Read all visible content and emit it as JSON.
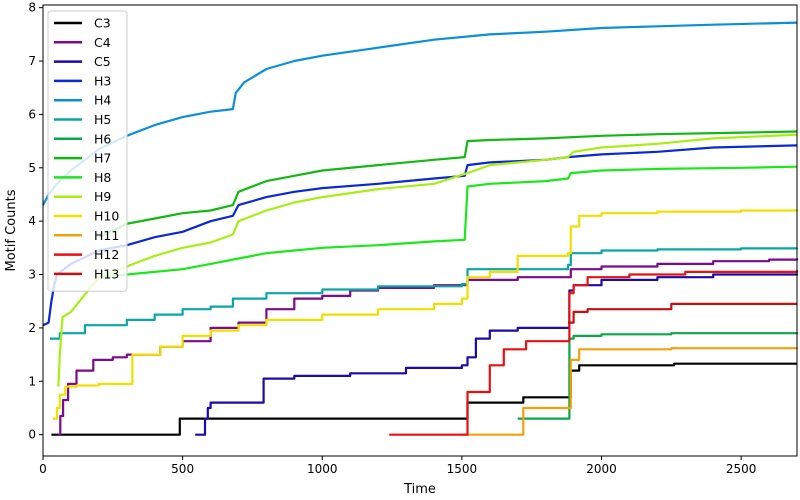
{
  "chart_data": {
    "type": "line",
    "xlabel": "Time",
    "ylabel": "Motif Counts",
    "xlim": [
      0,
      2700
    ],
    "ylim": [
      -0.4,
      8.05
    ],
    "xticks": [
      0,
      500,
      1000,
      1500,
      2000,
      2500
    ],
    "yticks": [
      0,
      1,
      2,
      3,
      4,
      5,
      6,
      7,
      8
    ],
    "grid": false,
    "legend_position": "top-left",
    "series": [
      {
        "name": "C3",
        "color": "#000000",
        "step": true,
        "points": [
          [
            30,
            0
          ],
          [
            490,
            0
          ],
          [
            490,
            0.3
          ],
          [
            1520,
            0.3
          ],
          [
            1520,
            0.6
          ],
          [
            1720,
            0.6
          ],
          [
            1720,
            0.7
          ],
          [
            1890,
            0.7
          ],
          [
            1890,
            1.2
          ],
          [
            1920,
            1.2
          ],
          [
            1920,
            1.3
          ],
          [
            2260,
            1.3
          ],
          [
            2260,
            1.33
          ],
          [
            2700,
            1.33
          ]
        ]
      },
      {
        "name": "C4",
        "color": "#7b0a8c",
        "step": true,
        "points": [
          [
            55,
            0
          ],
          [
            62,
            0.35
          ],
          [
            72,
            0.65
          ],
          [
            90,
            0.95
          ],
          [
            120,
            1.2
          ],
          [
            180,
            1.4
          ],
          [
            250,
            1.45
          ],
          [
            300,
            1.5
          ],
          [
            420,
            1.65
          ],
          [
            500,
            1.75
          ],
          [
            600,
            2.0
          ],
          [
            700,
            2.1
          ],
          [
            800,
            2.35
          ],
          [
            900,
            2.55
          ],
          [
            1000,
            2.6
          ],
          [
            1100,
            2.7
          ],
          [
            1200,
            2.75
          ],
          [
            1400,
            2.8
          ],
          [
            1520,
            2.9
          ],
          [
            1700,
            2.95
          ],
          [
            1890,
            3.1
          ],
          [
            2000,
            3.15
          ],
          [
            2200,
            3.2
          ],
          [
            2400,
            3.25
          ],
          [
            2600,
            3.28
          ],
          [
            2700,
            3.3
          ]
        ]
      },
      {
        "name": "C5",
        "color": "#1a0aa8",
        "step": true,
        "points": [
          [
            545,
            0
          ],
          [
            575,
            0
          ],
          [
            580,
            0.3
          ],
          [
            590,
            0.5
          ],
          [
            600,
            0.6
          ],
          [
            780,
            0.6
          ],
          [
            790,
            1.05
          ],
          [
            900,
            1.1
          ],
          [
            1100,
            1.15
          ],
          [
            1300,
            1.25
          ],
          [
            1500,
            1.3
          ],
          [
            1520,
            1.45
          ],
          [
            1550,
            1.8
          ],
          [
            1600,
            1.95
          ],
          [
            1700,
            2.0
          ],
          [
            1880,
            2.0
          ],
          [
            1885,
            2.7
          ],
          [
            1900,
            2.8
          ],
          [
            2000,
            2.9
          ],
          [
            2200,
            2.95
          ],
          [
            2400,
            3.0
          ],
          [
            2700,
            3.02
          ]
        ]
      },
      {
        "name": "H3",
        "color": "#0a28d4",
        "step": false,
        "points": [
          [
            0,
            2.05
          ],
          [
            20,
            2.1
          ],
          [
            30,
            2.5
          ],
          [
            40,
            2.8
          ],
          [
            50,
            3.0
          ],
          [
            100,
            3.2
          ],
          [
            200,
            3.45
          ],
          [
            300,
            3.55
          ],
          [
            400,
            3.7
          ],
          [
            500,
            3.8
          ],
          [
            600,
            4.0
          ],
          [
            680,
            4.1
          ],
          [
            700,
            4.3
          ],
          [
            800,
            4.45
          ],
          [
            900,
            4.55
          ],
          [
            1000,
            4.62
          ],
          [
            1200,
            4.7
          ],
          [
            1400,
            4.8
          ],
          [
            1510,
            4.85
          ],
          [
            1520,
            5.05
          ],
          [
            1600,
            5.1
          ],
          [
            1800,
            5.15
          ],
          [
            1880,
            5.2
          ],
          [
            2000,
            5.25
          ],
          [
            2200,
            5.3
          ],
          [
            2400,
            5.38
          ],
          [
            2700,
            5.42
          ]
        ]
      },
      {
        "name": "H4",
        "color": "#0a8fd8",
        "step": false,
        "points": [
          [
            0,
            4.3
          ],
          [
            20,
            4.5
          ],
          [
            50,
            4.7
          ],
          [
            100,
            4.95
          ],
          [
            200,
            5.35
          ],
          [
            300,
            5.6
          ],
          [
            400,
            5.8
          ],
          [
            500,
            5.95
          ],
          [
            600,
            6.05
          ],
          [
            680,
            6.1
          ],
          [
            690,
            6.4
          ],
          [
            720,
            6.6
          ],
          [
            800,
            6.85
          ],
          [
            900,
            7.0
          ],
          [
            1000,
            7.1
          ],
          [
            1200,
            7.25
          ],
          [
            1400,
            7.4
          ],
          [
            1600,
            7.5
          ],
          [
            1800,
            7.55
          ],
          [
            2000,
            7.62
          ],
          [
            2200,
            7.65
          ],
          [
            2400,
            7.68
          ],
          [
            2700,
            7.72
          ]
        ]
      },
      {
        "name": "H5",
        "color": "#0aa6a6",
        "step": true,
        "points": [
          [
            25,
            1.8
          ],
          [
            60,
            1.9
          ],
          [
            150,
            2.05
          ],
          [
            300,
            2.15
          ],
          [
            400,
            2.25
          ],
          [
            500,
            2.35
          ],
          [
            600,
            2.4
          ],
          [
            680,
            2.55
          ],
          [
            800,
            2.65
          ],
          [
            1000,
            2.72
          ],
          [
            1200,
            2.78
          ],
          [
            1500,
            2.82
          ],
          [
            1520,
            3.1
          ],
          [
            1880,
            3.18
          ],
          [
            1890,
            3.4
          ],
          [
            2000,
            3.45
          ],
          [
            2200,
            3.47
          ],
          [
            2500,
            3.49
          ],
          [
            2700,
            3.5
          ]
        ]
      },
      {
        "name": "H6",
        "color": "#0aa64a",
        "step": true,
        "points": [
          [
            1700,
            0.3
          ],
          [
            1880,
            0.3
          ],
          [
            1885,
            1.8
          ],
          [
            1900,
            1.85
          ],
          [
            2000,
            1.88
          ],
          [
            2250,
            1.9
          ],
          [
            2700,
            1.92
          ]
        ]
      },
      {
        "name": "H7",
        "color": "#14b814",
        "step": false,
        "points": [
          [
            200,
            3.7
          ],
          [
            300,
            3.95
          ],
          [
            400,
            4.05
          ],
          [
            500,
            4.15
          ],
          [
            600,
            4.2
          ],
          [
            680,
            4.3
          ],
          [
            700,
            4.55
          ],
          [
            800,
            4.75
          ],
          [
            900,
            4.85
          ],
          [
            1000,
            4.95
          ],
          [
            1200,
            5.05
          ],
          [
            1400,
            5.15
          ],
          [
            1510,
            5.2
          ],
          [
            1520,
            5.5
          ],
          [
            1600,
            5.52
          ],
          [
            1800,
            5.55
          ],
          [
            2000,
            5.6
          ],
          [
            2200,
            5.63
          ],
          [
            2500,
            5.66
          ],
          [
            2700,
            5.68
          ]
        ]
      },
      {
        "name": "H8",
        "color": "#1ae81a",
        "step": false,
        "points": [
          [
            200,
            2.95
          ],
          [
            300,
            3.0
          ],
          [
            500,
            3.1
          ],
          [
            600,
            3.2
          ],
          [
            700,
            3.3
          ],
          [
            800,
            3.4
          ],
          [
            900,
            3.45
          ],
          [
            1000,
            3.5
          ],
          [
            1200,
            3.55
          ],
          [
            1400,
            3.62
          ],
          [
            1510,
            3.65
          ],
          [
            1520,
            4.65
          ],
          [
            1600,
            4.7
          ],
          [
            1800,
            4.75
          ],
          [
            1880,
            4.8
          ],
          [
            1890,
            4.9
          ],
          [
            2000,
            4.95
          ],
          [
            2200,
            4.98
          ],
          [
            2500,
            5.0
          ],
          [
            2700,
            5.02
          ]
        ]
      },
      {
        "name": "H9",
        "color": "#a8ee14",
        "step": false,
        "points": [
          [
            55,
            0.9
          ],
          [
            60,
            1.5
          ],
          [
            70,
            2.2
          ],
          [
            100,
            2.3
          ],
          [
            200,
            2.95
          ],
          [
            300,
            3.15
          ],
          [
            400,
            3.35
          ],
          [
            500,
            3.5
          ],
          [
            600,
            3.6
          ],
          [
            680,
            3.75
          ],
          [
            700,
            4.0
          ],
          [
            800,
            4.2
          ],
          [
            900,
            4.35
          ],
          [
            1000,
            4.45
          ],
          [
            1200,
            4.6
          ],
          [
            1400,
            4.7
          ],
          [
            1520,
            4.9
          ],
          [
            1600,
            5.05
          ],
          [
            1800,
            5.15
          ],
          [
            1880,
            5.2
          ],
          [
            1900,
            5.3
          ],
          [
            2000,
            5.38
          ],
          [
            2200,
            5.45
          ],
          [
            2400,
            5.55
          ],
          [
            2700,
            5.62
          ]
        ]
      },
      {
        "name": "H10",
        "color": "#f0e000",
        "step": true,
        "points": [
          [
            35,
            0.3
          ],
          [
            50,
            0.5
          ],
          [
            60,
            0.75
          ],
          [
            80,
            0.9
          ],
          [
            120,
            0.92
          ],
          [
            200,
            0.95
          ],
          [
            320,
            1.5
          ],
          [
            420,
            1.65
          ],
          [
            500,
            1.85
          ],
          [
            600,
            1.95
          ],
          [
            700,
            2.05
          ],
          [
            800,
            2.15
          ],
          [
            1000,
            2.25
          ],
          [
            1200,
            2.35
          ],
          [
            1400,
            2.45
          ],
          [
            1500,
            2.55
          ],
          [
            1520,
            2.95
          ],
          [
            1600,
            3.05
          ],
          [
            1700,
            3.35
          ],
          [
            1880,
            3.4
          ],
          [
            1890,
            3.9
          ],
          [
            1920,
            4.1
          ],
          [
            2000,
            4.15
          ],
          [
            2200,
            4.18
          ],
          [
            2500,
            4.2
          ],
          [
            2700,
            4.22
          ]
        ]
      },
      {
        "name": "H11",
        "color": "#f5a00a",
        "step": true,
        "points": [
          [
            1500,
            0
          ],
          [
            1710,
            0
          ],
          [
            1720,
            0.5
          ],
          [
            1880,
            0.5
          ],
          [
            1890,
            1.4
          ],
          [
            1920,
            1.6
          ],
          [
            2250,
            1.62
          ],
          [
            2700,
            1.63
          ]
        ]
      },
      {
        "name": "H12",
        "color": "#e81010",
        "step": true,
        "points": [
          [
            1240,
            0
          ],
          [
            1515,
            0
          ],
          [
            1520,
            0.8
          ],
          [
            1580,
            0.8
          ],
          [
            1600,
            1.3
          ],
          [
            1640,
            1.3
          ],
          [
            1650,
            1.6
          ],
          [
            1720,
            1.6
          ],
          [
            1730,
            1.75
          ],
          [
            1880,
            1.75
          ],
          [
            1885,
            2.65
          ],
          [
            1900,
            2.8
          ],
          [
            1950,
            2.95
          ],
          [
            2100,
            3.0
          ],
          [
            2300,
            3.05
          ],
          [
            2700,
            3.08
          ]
        ]
      },
      {
        "name": "H13",
        "color": "#c41010",
        "step": true,
        "points": [
          [
            1880,
            2.1
          ],
          [
            1900,
            2.3
          ],
          [
            1950,
            2.35
          ],
          [
            2100,
            2.35
          ],
          [
            2250,
            2.45
          ],
          [
            2700,
            2.45
          ]
        ]
      }
    ]
  }
}
